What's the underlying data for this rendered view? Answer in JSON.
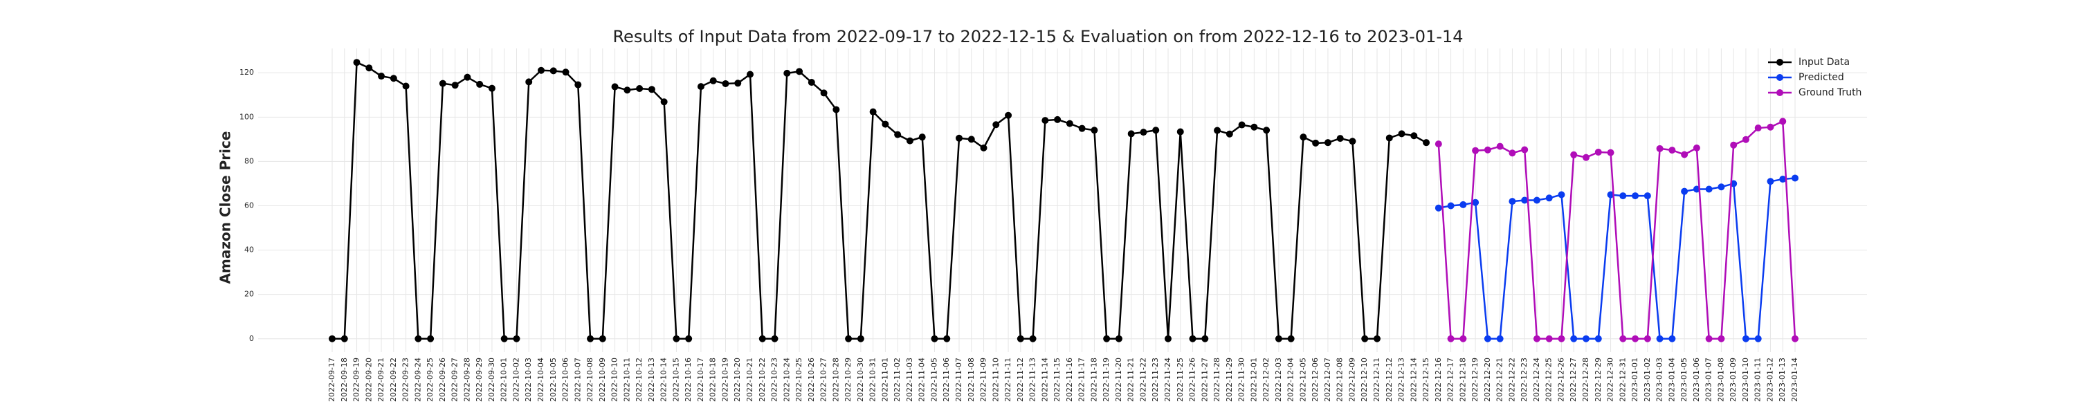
{
  "chart_data": {
    "type": "line",
    "title": "Results of Input Data from 2022-09-17 to 2022-12-15 & Evaluation on from 2022-12-16 to 2023-01-14",
    "y_label": "Amazon Close Price",
    "categories": [
      "2022-09-17",
      "2022-09-18",
      "2022-09-19",
      "2022-09-20",
      "2022-09-21",
      "2022-09-22",
      "2022-09-23",
      "2022-09-24",
      "2022-09-25",
      "2022-09-26",
      "2022-09-27",
      "2022-09-28",
      "2022-09-29",
      "2022-09-30",
      "2022-10-01",
      "2022-10-02",
      "2022-10-03",
      "2022-10-04",
      "2022-10-05",
      "2022-10-06",
      "2022-10-07",
      "2022-10-08",
      "2022-10-09",
      "2022-10-10",
      "2022-10-11",
      "2022-10-12",
      "2022-10-13",
      "2022-10-14",
      "2022-10-15",
      "2022-10-16",
      "2022-10-17",
      "2022-10-18",
      "2022-10-19",
      "2022-10-20",
      "2022-10-21",
      "2022-10-22",
      "2022-10-23",
      "2022-10-24",
      "2022-10-25",
      "2022-10-26",
      "2022-10-27",
      "2022-10-28",
      "2022-10-29",
      "2022-10-30",
      "2022-10-31",
      "2022-11-01",
      "2022-11-02",
      "2022-11-03",
      "2022-11-04",
      "2022-11-05",
      "2022-11-06",
      "2022-11-07",
      "2022-11-08",
      "2022-11-09",
      "2022-11-10",
      "2022-11-11",
      "2022-11-12",
      "2022-11-13",
      "2022-11-14",
      "2022-11-15",
      "2022-11-16",
      "2022-11-17",
      "2022-11-18",
      "2022-11-19",
      "2022-11-20",
      "2022-11-21",
      "2022-11-22",
      "2022-11-23",
      "2022-11-24",
      "2022-11-25",
      "2022-11-26",
      "2022-11-27",
      "2022-11-28",
      "2022-11-29",
      "2022-11-30",
      "2022-12-01",
      "2022-12-02",
      "2022-12-03",
      "2022-12-04",
      "2022-12-05",
      "2022-12-06",
      "2022-12-07",
      "2022-12-08",
      "2022-12-09",
      "2022-12-10",
      "2022-12-11",
      "2022-12-12",
      "2022-12-13",
      "2022-12-14",
      "2022-12-15",
      "2022-12-16",
      "2022-12-17",
      "2022-12-18",
      "2022-12-19",
      "2022-12-20",
      "2022-12-21",
      "2022-12-22",
      "2022-12-23",
      "2022-12-24",
      "2022-12-25",
      "2022-12-26",
      "2022-12-27",
      "2022-12-28",
      "2022-12-29",
      "2022-12-30",
      "2022-12-31",
      "2023-01-01",
      "2023-01-02",
      "2023-01-03",
      "2023-01-04",
      "2023-01-05",
      "2023-01-06",
      "2023-01-07",
      "2023-01-08",
      "2023-01-09",
      "2023-01-10",
      "2023-01-11",
      "2023-01-12",
      "2023-01-13",
      "2023-01-14"
    ],
    "series": [
      {
        "name": "Input Data",
        "color": "#000000",
        "values": [
          0,
          0,
          124.7,
          122.2,
          118.5,
          117.5,
          114,
          0,
          0,
          115.2,
          114.4,
          118,
          114.8,
          113,
          0,
          0,
          115.9,
          121.1,
          120.9,
          120.3,
          114.6,
          0,
          0,
          113.7,
          112.2,
          112.9,
          112.5,
          106.9,
          0,
          0,
          113.8,
          116.4,
          115.1,
          115.3,
          119.3,
          0,
          0,
          119.8,
          120.6,
          115.7,
          110.9,
          103.4,
          0,
          0,
          102.4,
          96.8,
          92.1,
          89.3,
          91,
          0,
          0,
          90.5,
          90,
          86.1,
          96.6,
          100.8,
          0,
          0,
          98.5,
          98.9,
          97.1,
          94.9,
          94.1,
          0,
          0,
          92.5,
          93.2,
          94.1,
          0,
          93.4,
          0,
          0,
          94,
          92.4,
          96.5,
          95.5,
          94.1,
          0,
          0,
          91,
          88.3,
          88.5,
          90.4,
          89.1,
          0,
          0,
          90.6,
          92.5,
          91.6,
          88.5,
          null,
          null,
          null,
          null,
          null,
          null,
          null,
          null,
          null,
          null,
          null,
          null,
          null,
          null,
          null,
          null,
          null,
          null,
          null,
          null,
          null,
          null,
          null,
          null,
          null,
          null,
          null,
          null,
          null,
          null
        ]
      },
      {
        "name": "Predicted",
        "color": "#0a3cf0",
        "values": [
          null,
          null,
          null,
          null,
          null,
          null,
          null,
          null,
          null,
          null,
          null,
          null,
          null,
          null,
          null,
          null,
          null,
          null,
          null,
          null,
          null,
          null,
          null,
          null,
          null,
          null,
          null,
          null,
          null,
          null,
          null,
          null,
          null,
          null,
          null,
          null,
          null,
          null,
          null,
          null,
          null,
          null,
          null,
          null,
          null,
          null,
          null,
          null,
          null,
          null,
          null,
          null,
          null,
          null,
          null,
          null,
          null,
          null,
          null,
          null,
          null,
          null,
          null,
          null,
          null,
          null,
          null,
          null,
          null,
          null,
          null,
          null,
          null,
          null,
          null,
          null,
          null,
          null,
          null,
          null,
          null,
          null,
          null,
          null,
          null,
          null,
          null,
          null,
          null,
          null,
          59,
          60,
          60.5,
          61.5,
          0,
          0,
          62,
          62.5,
          62.5,
          63.5,
          65,
          0,
          0,
          0,
          65,
          64.5,
          64.5,
          64.5,
          0,
          0,
          66.5,
          67.5,
          67.5,
          68.5,
          70,
          0,
          0,
          71,
          72,
          72.5
        ]
      },
      {
        "name": "Ground Truth",
        "color": "#b00db8",
        "values": [
          null,
          null,
          null,
          null,
          null,
          null,
          null,
          null,
          null,
          null,
          null,
          null,
          null,
          null,
          null,
          null,
          null,
          null,
          null,
          null,
          null,
          null,
          null,
          null,
          null,
          null,
          null,
          null,
          null,
          null,
          null,
          null,
          null,
          null,
          null,
          null,
          null,
          null,
          null,
          null,
          null,
          null,
          null,
          null,
          null,
          null,
          null,
          null,
          null,
          null,
          null,
          null,
          null,
          null,
          null,
          null,
          null,
          null,
          null,
          null,
          null,
          null,
          null,
          null,
          null,
          null,
          null,
          null,
          null,
          null,
          null,
          null,
          null,
          null,
          null,
          null,
          null,
          null,
          null,
          null,
          null,
          null,
          null,
          null,
          null,
          null,
          null,
          null,
          null,
          null,
          87.9,
          0,
          0,
          84.9,
          85.2,
          86.8,
          83.8,
          85.3,
          0,
          0,
          0,
          83,
          81.8,
          84.2,
          84,
          0,
          0,
          0,
          85.8,
          85.1,
          83.1,
          86.1,
          0,
          0,
          87.4,
          89.9,
          95.1,
          95.5,
          98.1,
          0
        ]
      }
    ],
    "ylim": [
      -6,
      131
    ],
    "yticks": [
      0,
      20,
      40,
      60,
      80,
      100,
      120
    ],
    "grid": true,
    "legend": "upper right"
  }
}
